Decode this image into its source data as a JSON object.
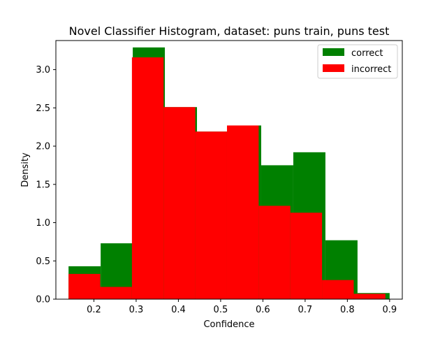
{
  "chart_data": {
    "type": "histogram",
    "title": "Novel Classifier Histogram, dataset: puns train, puns test",
    "xlabel": "Confidence",
    "ylabel": "Density",
    "xlim": [
      0.11,
      0.93
    ],
    "ylim": [
      0,
      3.38
    ],
    "xticks": [
      0.2,
      0.3,
      0.4,
      0.5,
      0.6,
      0.7,
      0.8,
      0.9
    ],
    "xtick_labels": [
      "0.2",
      "0.3",
      "0.4",
      "0.5",
      "0.6",
      "0.7",
      "0.8",
      "0.9"
    ],
    "yticks": [
      0.0,
      0.5,
      1.0,
      1.5,
      2.0,
      2.5,
      3.0
    ],
    "ytick_labels": [
      "0.0",
      "0.5",
      "1.0",
      "1.5",
      "2.0",
      "2.5",
      "3.0"
    ],
    "grid": false,
    "legend_position": "top-right",
    "series": [
      {
        "name": "correct",
        "color": "#008000",
        "bin_edges": [
          0.14,
          0.216,
          0.292,
          0.368,
          0.444,
          0.52,
          0.596,
          0.672,
          0.748,
          0.824,
          0.9
        ],
        "values": [
          0.43,
          0.73,
          3.29,
          2.51,
          2.19,
          2.27,
          1.75,
          1.92,
          0.77,
          0.08
        ]
      },
      {
        "name": "incorrect",
        "color": "#ff0000",
        "bin_edges": [
          0.14,
          0.215,
          0.29,
          0.365,
          0.44,
          0.515,
          0.59,
          0.665,
          0.74,
          0.815,
          0.89
        ],
        "values": [
          0.33,
          0.16,
          3.16,
          2.51,
          2.19,
          2.27,
          1.22,
          1.13,
          0.25,
          0.07
        ]
      }
    ]
  }
}
